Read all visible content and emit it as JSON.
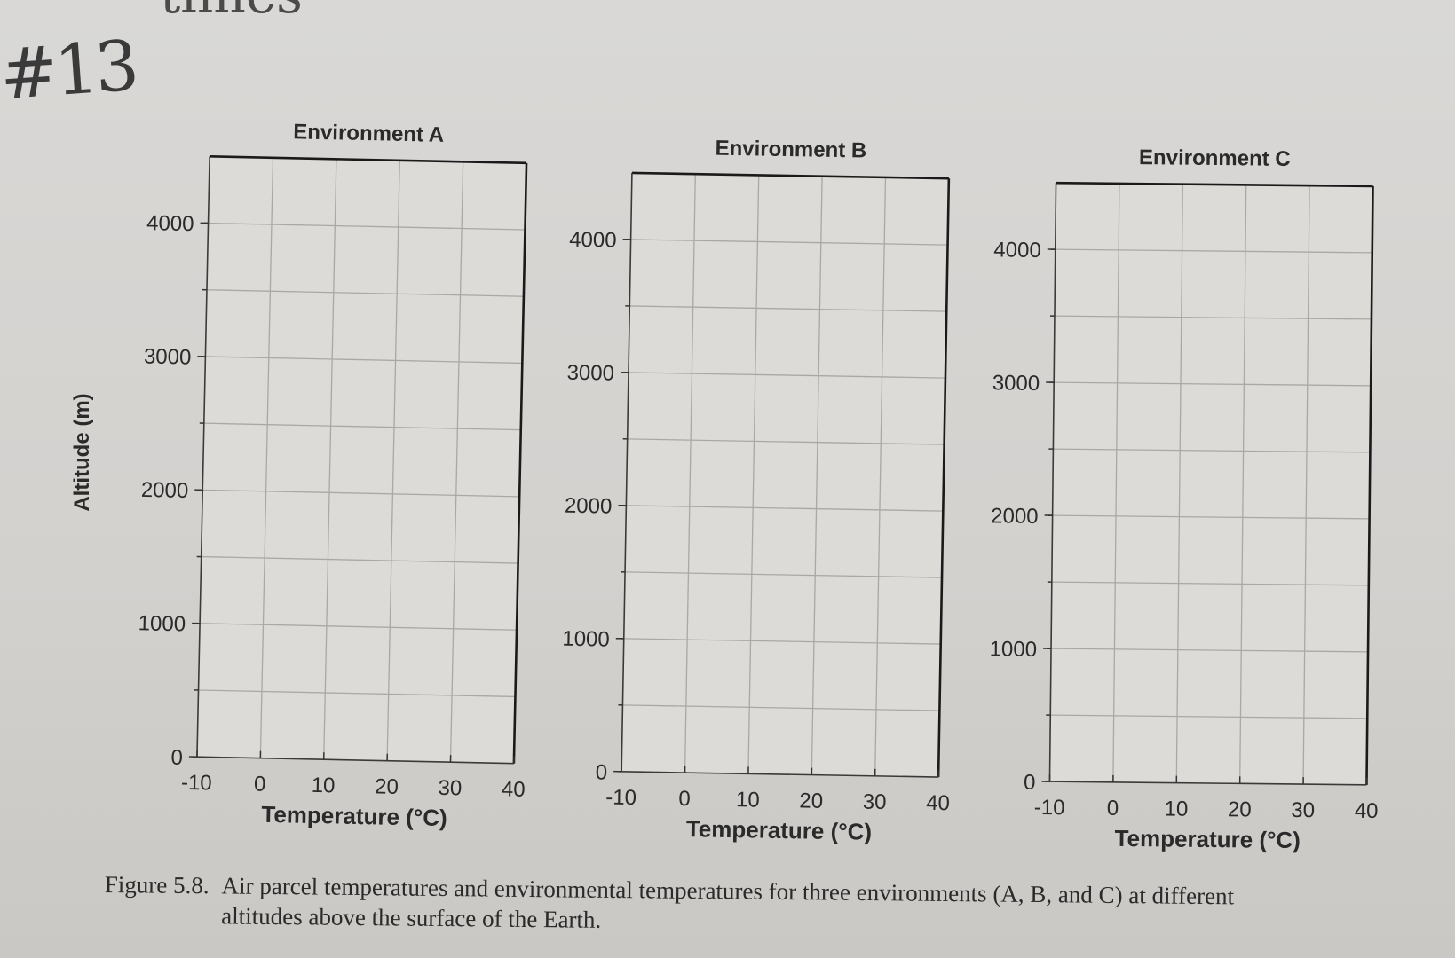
{
  "annotations": {
    "handwritten_number": "#13",
    "top_scribble": "times"
  },
  "shared": {
    "ylabel": "Altitude (m)",
    "xlabel": "Temperature (°C)"
  },
  "chart_data": [
    {
      "type": "scatter",
      "title": "Environment A",
      "xlabel": "Temperature (°C)",
      "ylabel": "Altitude (m)",
      "x_ticks": [
        -10,
        0,
        10,
        20,
        30,
        40
      ],
      "y_ticks": [
        0,
        1000,
        2000,
        3000,
        4000
      ],
      "xlim": [
        -10,
        40
      ],
      "ylim": [
        0,
        4500
      ],
      "grid": true,
      "series": []
    },
    {
      "type": "scatter",
      "title": "Environment B",
      "xlabel": "Temperature (°C)",
      "ylabel": "",
      "x_ticks": [
        -10,
        0,
        10,
        20,
        30,
        40
      ],
      "y_ticks": [
        0,
        1000,
        2000,
        3000,
        4000
      ],
      "xlim": [
        -10,
        40
      ],
      "ylim": [
        0,
        4500
      ],
      "grid": true,
      "series": []
    },
    {
      "type": "scatter",
      "title": "Environment C",
      "xlabel": "Temperature (°C)",
      "ylabel": "",
      "x_ticks": [
        -10,
        0,
        10,
        20,
        30,
        40
      ],
      "y_ticks": [
        0,
        1000,
        2000,
        3000,
        4000
      ],
      "xlim": [
        -10,
        40
      ],
      "ylim": [
        0,
        4500
      ],
      "grid": true,
      "series": []
    }
  ],
  "caption": {
    "figure_label": "Figure 5.8.",
    "text": "Air parcel temperatures and environmental temperatures for three environments (A, B, and C) at different altitudes above the surface of the Earth."
  }
}
